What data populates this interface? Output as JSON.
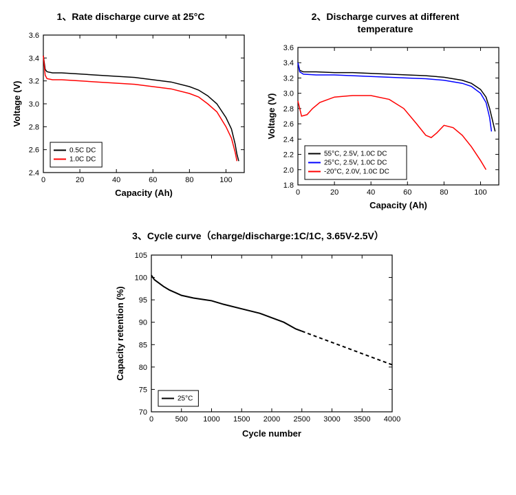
{
  "chart1": {
    "title": "1、Rate discharge curve at 25°C",
    "type": "line",
    "xlabel": "Capacity (Ah)",
    "ylabel": "Voltage (V)",
    "xlim": [
      0,
      110
    ],
    "xtick_step": 20,
    "ylim": [
      2.4,
      3.6
    ],
    "ytick_step": 0.2,
    "background_color": "#ffffff",
    "axis_color": "#000000",
    "tick_fontsize": 11,
    "label_fontsize": 13,
    "line_width": 1.5,
    "series": [
      {
        "label": "0.5C DC",
        "color": "#000000",
        "x": [
          0,
          1,
          2,
          5,
          10,
          20,
          30,
          40,
          50,
          60,
          70,
          80,
          85,
          90,
          95,
          100,
          103,
          105,
          106,
          107
        ],
        "y": [
          3.42,
          3.3,
          3.28,
          3.27,
          3.27,
          3.26,
          3.25,
          3.24,
          3.23,
          3.21,
          3.19,
          3.15,
          3.12,
          3.07,
          3.0,
          2.88,
          2.78,
          2.65,
          2.56,
          2.5
        ]
      },
      {
        "label": "1.0C DC",
        "color": "#ff0000",
        "x": [
          0,
          1,
          2,
          5,
          10,
          20,
          30,
          40,
          50,
          60,
          70,
          80,
          85,
          90,
          95,
          100,
          103,
          105,
          106
        ],
        "y": [
          3.42,
          3.25,
          3.22,
          3.21,
          3.21,
          3.2,
          3.19,
          3.18,
          3.17,
          3.15,
          3.13,
          3.09,
          3.06,
          3.0,
          2.93,
          2.8,
          2.7,
          2.58,
          2.5
        ]
      }
    ],
    "legend_pos": "lower-left"
  },
  "chart2": {
    "title": "2、Discharge curves at different\ntemperature",
    "type": "line",
    "xlabel": "Capacity (Ah)",
    "ylabel": "Voltage (V)",
    "xlim": [
      0,
      110
    ],
    "xtick_step": 20,
    "ylim": [
      1.8,
      3.6
    ],
    "ytick_step": 0.2,
    "background_color": "#ffffff",
    "axis_color": "#000000",
    "tick_fontsize": 11,
    "label_fontsize": 13,
    "line_width": 1.5,
    "series": [
      {
        "label": "55°C, 2.5V, 1.0C DC",
        "color": "#000000",
        "x": [
          0,
          1,
          3,
          10,
          20,
          30,
          40,
          50,
          60,
          70,
          80,
          90,
          95,
          100,
          103,
          105,
          107,
          108
        ],
        "y": [
          3.4,
          3.3,
          3.28,
          3.28,
          3.27,
          3.27,
          3.26,
          3.25,
          3.24,
          3.23,
          3.21,
          3.17,
          3.13,
          3.05,
          2.95,
          2.8,
          2.6,
          2.5
        ]
      },
      {
        "label": "25°C, 2.5V, 1.0C DC",
        "color": "#0000ff",
        "x": [
          0,
          1,
          3,
          10,
          20,
          30,
          40,
          50,
          60,
          70,
          80,
          90,
          95,
          100,
          103,
          105,
          106
        ],
        "y": [
          3.4,
          3.28,
          3.25,
          3.24,
          3.24,
          3.23,
          3.22,
          3.21,
          3.2,
          3.19,
          3.17,
          3.13,
          3.09,
          3.0,
          2.88,
          2.68,
          2.5
        ]
      },
      {
        "label": "-20°C, 2.0V, 1.0C DC",
        "color": "#ff0000",
        "x": [
          0,
          2,
          5,
          8,
          12,
          20,
          30,
          40,
          50,
          58,
          65,
          70,
          73,
          76,
          80,
          85,
          90,
          95,
          100,
          103
        ],
        "y": [
          2.9,
          2.7,
          2.72,
          2.8,
          2.88,
          2.95,
          2.97,
          2.97,
          2.92,
          2.8,
          2.6,
          2.45,
          2.42,
          2.48,
          2.58,
          2.55,
          2.45,
          2.3,
          2.12,
          2.0
        ]
      }
    ],
    "legend_pos": "lower-left"
  },
  "chart3": {
    "title": "3、Cycle curve（charge/discharge:1C/1C, 3.65V-2.5V）",
    "type": "line",
    "xlabel": "Cycle number",
    "ylabel": "Capacity retention (%)",
    "xlim": [
      0,
      4000
    ],
    "xtick_step": 500,
    "ylim": [
      70,
      105
    ],
    "ytick_step": 5,
    "background_color": "#ffffff",
    "axis_color": "#000000",
    "tick_fontsize": 11,
    "label_fontsize": 13,
    "line_width": 2,
    "series": [
      {
        "label": "25°C",
        "color": "#000000",
        "x": [
          0,
          50,
          100,
          200,
          300,
          400,
          500,
          700,
          900,
          1000,
          1200,
          1500,
          1800,
          2000,
          2200,
          2400,
          2500
        ],
        "y": [
          100.5,
          99.5,
          99,
          98,
          97.2,
          96.6,
          96,
          95.4,
          95,
          94.8,
          94,
          93,
          92,
          91,
          90,
          88.5,
          88
        ],
        "dash_x": [
          2500,
          4000
        ],
        "dash_y": [
          88,
          80.5
        ]
      }
    ],
    "legend_pos": "lower-left"
  }
}
